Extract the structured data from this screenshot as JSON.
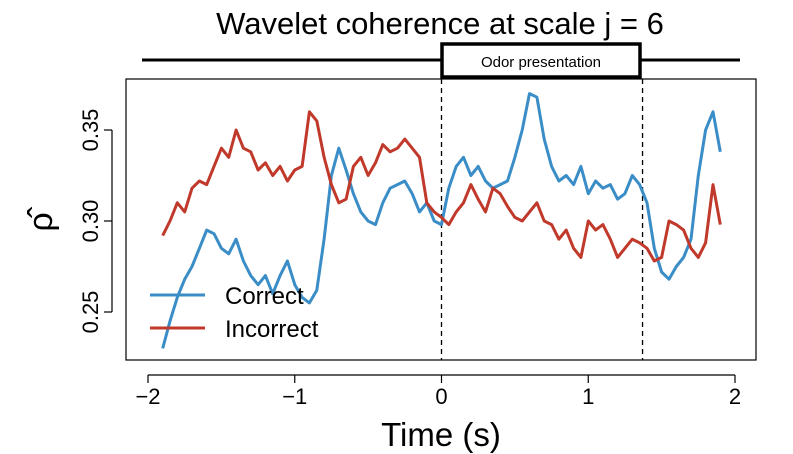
{
  "chart_data": {
    "type": "line",
    "title": "Wavelet coherence at scale j = 6",
    "xlabel": "Time (s)",
    "ylabel": "ρ̂",
    "xlim": [
      -2.1,
      2.1
    ],
    "ylim": [
      0.22,
      0.38
    ],
    "xticks": [
      -2,
      -1,
      0,
      1,
      2
    ],
    "xtick_labels": [
      "−2",
      "−1",
      "0",
      "1",
      "2"
    ],
    "yticks": [
      0.25,
      0.3,
      0.35
    ],
    "ytick_labels": [
      "0.25",
      "0.30",
      "0.35"
    ],
    "grid": false,
    "legend_position": "bottom-left",
    "annotation": {
      "label": "Odor presentation",
      "start": 0,
      "end": 1.37
    },
    "series": [
      {
        "name": "Correct",
        "color": "#3a8dc6",
        "x": [
          -1.9,
          -1.85,
          -1.8,
          -1.75,
          -1.7,
          -1.65,
          -1.6,
          -1.55,
          -1.5,
          -1.45,
          -1.4,
          -1.35,
          -1.3,
          -1.25,
          -1.2,
          -1.15,
          -1.1,
          -1.05,
          -1.0,
          -0.95,
          -0.9,
          -0.85,
          -0.8,
          -0.75,
          -0.7,
          -0.65,
          -0.6,
          -0.55,
          -0.5,
          -0.45,
          -0.4,
          -0.35,
          -0.3,
          -0.25,
          -0.2,
          -0.15,
          -0.1,
          -0.05,
          0.0,
          0.05,
          0.1,
          0.15,
          0.2,
          0.25,
          0.3,
          0.35,
          0.4,
          0.45,
          0.5,
          0.55,
          0.6,
          0.65,
          0.7,
          0.75,
          0.8,
          0.85,
          0.9,
          0.95,
          1.0,
          1.05,
          1.1,
          1.15,
          1.2,
          1.25,
          1.3,
          1.35,
          1.4,
          1.45,
          1.5,
          1.55,
          1.6,
          1.65,
          1.7,
          1.75,
          1.8,
          1.85,
          1.9
        ],
        "values": [
          0.23,
          0.245,
          0.258,
          0.268,
          0.275,
          0.285,
          0.295,
          0.293,
          0.285,
          0.282,
          0.29,
          0.278,
          0.27,
          0.265,
          0.27,
          0.26,
          0.27,
          0.278,
          0.265,
          0.258,
          0.255,
          0.262,
          0.29,
          0.325,
          0.34,
          0.328,
          0.315,
          0.305,
          0.3,
          0.298,
          0.31,
          0.318,
          0.32,
          0.322,
          0.315,
          0.305,
          0.31,
          0.3,
          0.298,
          0.318,
          0.33,
          0.335,
          0.325,
          0.33,
          0.322,
          0.318,
          0.32,
          0.322,
          0.335,
          0.35,
          0.37,
          0.368,
          0.345,
          0.33,
          0.322,
          0.325,
          0.32,
          0.33,
          0.315,
          0.322,
          0.318,
          0.32,
          0.312,
          0.315,
          0.325,
          0.32,
          0.31,
          0.285,
          0.272,
          0.268,
          0.275,
          0.28,
          0.29,
          0.325,
          0.35,
          0.36,
          0.338
        ]
      },
      {
        "name": "Incorrect",
        "color": "#c0392b",
        "x": [
          -1.9,
          -1.85,
          -1.8,
          -1.75,
          -1.7,
          -1.65,
          -1.6,
          -1.55,
          -1.5,
          -1.45,
          -1.4,
          -1.35,
          -1.3,
          -1.25,
          -1.2,
          -1.15,
          -1.1,
          -1.05,
          -1.0,
          -0.95,
          -0.9,
          -0.85,
          -0.8,
          -0.75,
          -0.7,
          -0.65,
          -0.6,
          -0.55,
          -0.5,
          -0.45,
          -0.4,
          -0.35,
          -0.3,
          -0.25,
          -0.2,
          -0.15,
          -0.1,
          -0.05,
          0.0,
          0.05,
          0.1,
          0.15,
          0.2,
          0.25,
          0.3,
          0.35,
          0.4,
          0.45,
          0.5,
          0.55,
          0.6,
          0.65,
          0.7,
          0.75,
          0.8,
          0.85,
          0.9,
          0.95,
          1.0,
          1.05,
          1.1,
          1.15,
          1.2,
          1.25,
          1.3,
          1.35,
          1.4,
          1.45,
          1.5,
          1.55,
          1.6,
          1.65,
          1.7,
          1.75,
          1.8,
          1.85,
          1.9
        ],
        "values": [
          0.292,
          0.3,
          0.31,
          0.305,
          0.318,
          0.322,
          0.32,
          0.33,
          0.34,
          0.335,
          0.35,
          0.34,
          0.338,
          0.328,
          0.332,
          0.325,
          0.33,
          0.322,
          0.328,
          0.33,
          0.36,
          0.355,
          0.335,
          0.32,
          0.31,
          0.312,
          0.33,
          0.335,
          0.325,
          0.332,
          0.342,
          0.338,
          0.34,
          0.345,
          0.34,
          0.335,
          0.31,
          0.305,
          0.302,
          0.298,
          0.305,
          0.31,
          0.32,
          0.312,
          0.305,
          0.318,
          0.315,
          0.308,
          0.302,
          0.3,
          0.305,
          0.31,
          0.3,
          0.298,
          0.29,
          0.295,
          0.285,
          0.28,
          0.3,
          0.295,
          0.298,
          0.29,
          0.28,
          0.285,
          0.29,
          0.288,
          0.285,
          0.278,
          0.28,
          0.3,
          0.298,
          0.295,
          0.285,
          0.28,
          0.288,
          0.32,
          0.298
        ]
      }
    ]
  }
}
